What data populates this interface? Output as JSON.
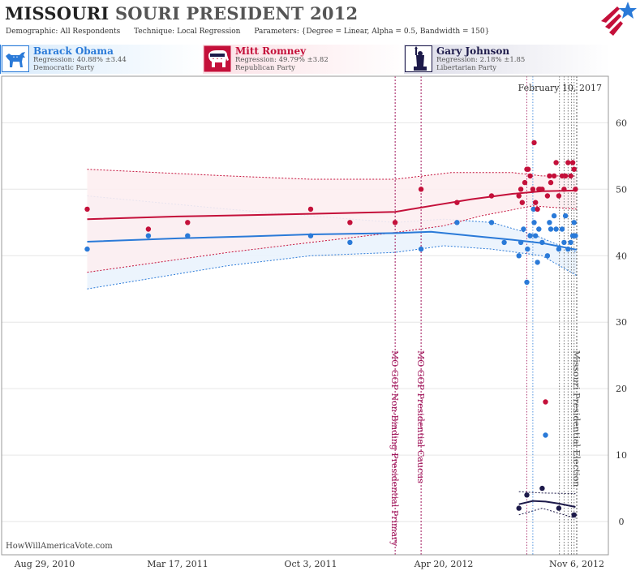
{
  "header": {
    "title_main": "MISSOURI",
    "title_rest": "SOURI PRESIDENT 2012",
    "demographic_label": "Demographic:",
    "demographic_value": "All Respondents",
    "technique_label": "Technique:",
    "technique_value": "Local Regression",
    "parameters_label": "Parameters:",
    "parameters_value": "{Degree = Linear, Alpha = 0.5, Bandwidth = 150}"
  },
  "candidates": [
    {
      "name": "Barack Obama",
      "regression": "Regression: 40.88% ±3.44",
      "party": "Democratic Party",
      "color": "#2a7ad8",
      "icon": "donkey-icon"
    },
    {
      "name": "Mitt Romney",
      "regression": "Regression: 49.79% ±3.82",
      "party": "Republican Party",
      "color": "#c4103a",
      "icon": "elephant-icon"
    },
    {
      "name": "Gary Johnson",
      "regression": "Regression: 2.18% ±1.85",
      "party": "Libertarian Party",
      "color": "#1d1a4a",
      "icon": "statue-of-liberty-icon"
    }
  ],
  "watermark": "HowWillAmericaVote.com",
  "chart_data": {
    "type": "scatter",
    "date_label": "February 10, 2017",
    "x_start": "2010-08-29",
    "x_end": "2012-11-06",
    "x_ticks": [
      {
        "date": "2010-08-29",
        "label": "Aug 29, 2010"
      },
      {
        "date": "2011-03-17",
        "label": "Mar 17, 2011"
      },
      {
        "date": "2011-10-03",
        "label": "Oct 3, 2011"
      },
      {
        "date": "2012-04-20",
        "label": "Apr 20, 2012"
      },
      {
        "date": "2012-11-06",
        "label": "Nov 6, 2012"
      }
    ],
    "ylim": [
      -5,
      67
    ],
    "y_ticks": [
      0,
      10,
      20,
      30,
      40,
      50,
      60
    ],
    "grid": true,
    "events": [
      {
        "date": "2012-02-07",
        "label": "MO GOP Non-Binding Presidential Primary",
        "color": "#a0145a"
      },
      {
        "date": "2012-03-17",
        "label": "MO GOP Presidential Caucus",
        "color": "#a0145a"
      },
      {
        "date": "2012-11-06",
        "label": "Missouri Presidential Election",
        "color": "#555555"
      }
    ],
    "poll_lines": [
      {
        "date": "2012-08-23",
        "color": "#a0145a"
      },
      {
        "date": "2012-09-01",
        "color": "#2a7ad8"
      },
      {
        "date": "2012-10-11",
        "color": "#555555"
      },
      {
        "date": "2012-10-18",
        "color": "#555555"
      },
      {
        "date": "2012-10-24",
        "color": "#555555"
      },
      {
        "date": "2012-10-29",
        "color": "#555555"
      },
      {
        "date": "2012-11-02",
        "color": "#555555"
      }
    ],
    "series": [
      {
        "name": "Barack Obama",
        "color": "#2a7ad8",
        "band_fill": "#eaf3fd",
        "trend": [
          [
            "2010-11-01",
            42.1
          ],
          [
            "2011-03-17",
            42.6
          ],
          [
            "2011-07-01",
            42.9
          ],
          [
            "2011-10-03",
            43.2
          ],
          [
            "2012-02-07",
            43.4
          ],
          [
            "2012-04-01",
            43.6
          ],
          [
            "2012-06-01",
            43.0
          ],
          [
            "2012-08-01",
            42.4
          ],
          [
            "2012-09-15",
            41.9
          ],
          [
            "2012-11-06",
            40.9
          ]
        ],
        "upper": [
          [
            "2010-11-01",
            49.0
          ],
          [
            "2011-06-01",
            47.0
          ],
          [
            "2011-10-03",
            46.0
          ],
          [
            "2012-02-07",
            45.0
          ],
          [
            "2012-04-20",
            45.5
          ],
          [
            "2012-07-01",
            45.0
          ],
          [
            "2012-09-01",
            43.2
          ],
          [
            "2012-11-06",
            40.5
          ]
        ],
        "lower": [
          [
            "2010-11-01",
            35.0
          ],
          [
            "2011-06-01",
            38.5
          ],
          [
            "2011-10-03",
            40.0
          ],
          [
            "2012-02-07",
            40.5
          ],
          [
            "2012-04-20",
            41.5
          ],
          [
            "2012-07-01",
            41.0
          ],
          [
            "2012-09-15",
            40.0
          ],
          [
            "2012-11-06",
            37.0
          ]
        ],
        "points": [
          [
            "2010-11-01",
            41
          ],
          [
            "2011-02-01",
            43
          ],
          [
            "2011-04-01",
            43
          ],
          [
            "2011-10-03",
            43
          ],
          [
            "2011-12-01",
            42
          ],
          [
            "2012-03-17",
            41
          ],
          [
            "2012-05-10",
            45
          ],
          [
            "2012-07-01",
            45
          ],
          [
            "2012-07-20",
            42
          ],
          [
            "2012-08-11",
            40
          ],
          [
            "2012-08-14",
            42
          ],
          [
            "2012-08-18",
            44
          ],
          [
            "2012-08-23",
            36
          ],
          [
            "2012-08-24",
            41
          ],
          [
            "2012-08-28",
            43
          ],
          [
            "2012-09-02",
            47
          ],
          [
            "2012-09-03",
            45
          ],
          [
            "2012-09-05",
            43
          ],
          [
            "2012-09-08",
            39
          ],
          [
            "2012-09-10",
            44
          ],
          [
            "2012-09-15",
            42
          ],
          [
            "2012-09-20",
            13
          ],
          [
            "2012-09-23",
            40
          ],
          [
            "2012-09-26",
            45
          ],
          [
            "2012-09-28",
            44
          ],
          [
            "2012-10-03",
            46
          ],
          [
            "2012-10-06",
            44
          ],
          [
            "2012-10-10",
            41
          ],
          [
            "2012-10-15",
            44
          ],
          [
            "2012-10-18",
            42
          ],
          [
            "2012-10-20",
            46
          ],
          [
            "2012-10-24",
            41
          ],
          [
            "2012-10-28",
            42
          ],
          [
            "2012-10-31",
            43
          ],
          [
            "2012-11-02",
            45
          ],
          [
            "2012-11-04",
            43
          ]
        ]
      },
      {
        "name": "Mitt Romney",
        "color": "#c4103a",
        "band_fill": "#fdeef1",
        "trend": [
          [
            "2010-11-01",
            45.5
          ],
          [
            "2011-03-17",
            45.9
          ],
          [
            "2011-07-01",
            46.1
          ],
          [
            "2011-10-03",
            46.3
          ],
          [
            "2012-02-07",
            46.6
          ],
          [
            "2012-04-01",
            47.5
          ],
          [
            "2012-06-01",
            48.5
          ],
          [
            "2012-08-01",
            49.3
          ],
          [
            "2012-09-15",
            49.7
          ],
          [
            "2012-11-06",
            49.8
          ]
        ],
        "upper": [
          [
            "2010-11-01",
            53.0
          ],
          [
            "2011-06-01",
            52.0
          ],
          [
            "2011-10-03",
            51.5
          ],
          [
            "2012-02-07",
            51.5
          ],
          [
            "2012-05-01",
            52.5
          ],
          [
            "2012-08-01",
            52.5
          ],
          [
            "2012-09-15",
            52.0
          ],
          [
            "2012-11-06",
            52.0
          ]
        ],
        "lower": [
          [
            "2010-11-01",
            37.5
          ],
          [
            "2011-06-01",
            40.5
          ],
          [
            "2011-10-03",
            42.0
          ],
          [
            "2012-02-07",
            43.5
          ],
          [
            "2012-04-20",
            44.5
          ],
          [
            "2012-06-15",
            46.0
          ],
          [
            "2012-09-01",
            47.5
          ],
          [
            "2012-11-06",
            47.0
          ]
        ],
        "points": [
          [
            "2010-11-01",
            47
          ],
          [
            "2011-02-01",
            44
          ],
          [
            "2011-04-01",
            45
          ],
          [
            "2011-10-03",
            47
          ],
          [
            "2011-12-01",
            45
          ],
          [
            "2012-02-07",
            45
          ],
          [
            "2012-03-17",
            50
          ],
          [
            "2012-05-10",
            48
          ],
          [
            "2012-07-01",
            49
          ],
          [
            "2012-08-11",
            49
          ],
          [
            "2012-08-14",
            50
          ],
          [
            "2012-08-16",
            48
          ],
          [
            "2012-08-20",
            51
          ],
          [
            "2012-08-23",
            53
          ],
          [
            "2012-08-25",
            53
          ],
          [
            "2012-08-28",
            52
          ],
          [
            "2012-09-01",
            50
          ],
          [
            "2012-09-03",
            57
          ],
          [
            "2012-09-05",
            48
          ],
          [
            "2012-09-08",
            47
          ],
          [
            "2012-09-10",
            50
          ],
          [
            "2012-09-12",
            50
          ],
          [
            "2012-09-15",
            50
          ],
          [
            "2012-09-20",
            18
          ],
          [
            "2012-09-23",
            49
          ],
          [
            "2012-09-26",
            52
          ],
          [
            "2012-09-28",
            51
          ],
          [
            "2012-10-03",
            52
          ],
          [
            "2012-10-06",
            54
          ],
          [
            "2012-10-10",
            49
          ],
          [
            "2012-10-15",
            52
          ],
          [
            "2012-10-18",
            50
          ],
          [
            "2012-10-20",
            52
          ],
          [
            "2012-10-24",
            54
          ],
          [
            "2012-10-28",
            52
          ],
          [
            "2012-10-31",
            54
          ],
          [
            "2012-11-02",
            53
          ],
          [
            "2012-11-04",
            50
          ]
        ]
      },
      {
        "name": "Gary Johnson",
        "color": "#1d1a4a",
        "band_fill": "#ffffff",
        "trend": [
          [
            "2012-08-11",
            2.6
          ],
          [
            "2012-09-01",
            3.1
          ],
          [
            "2012-09-20",
            3.0
          ],
          [
            "2012-10-10",
            2.7
          ],
          [
            "2012-11-04",
            2.2
          ]
        ],
        "upper": [
          [
            "2012-08-11",
            4.5
          ],
          [
            "2012-09-15",
            4.3
          ],
          [
            "2012-11-04",
            4.2
          ]
        ],
        "lower": [
          [
            "2012-08-11",
            1.0
          ],
          [
            "2012-09-15",
            2.0
          ],
          [
            "2012-11-04",
            0.5
          ]
        ],
        "points": [
          [
            "2012-08-11",
            2
          ],
          [
            "2012-08-23",
            4
          ],
          [
            "2012-09-15",
            5
          ],
          [
            "2012-10-10",
            2
          ],
          [
            "2012-11-02",
            1
          ]
        ]
      }
    ]
  }
}
